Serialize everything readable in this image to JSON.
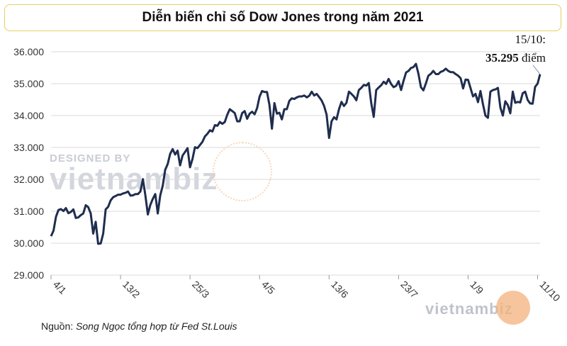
{
  "title": "Diễn biến chỉ số Dow Jones trong năm 2021",
  "source_label": "Nguồn:",
  "source_text": "Song Ngọc tổng hợp từ Fed St.Louis",
  "annotation": {
    "date": "15/10:",
    "value": "35.295",
    "unit": "điểm"
  },
  "watermark": {
    "top": "DESIGNED BY",
    "brand": "vietnambiz"
  },
  "colors": {
    "line": "#1f2d4e",
    "grid": "#d9d9d9",
    "title_border": "#e3cf63",
    "accent": "#f0a060"
  },
  "chart_data": {
    "type": "line",
    "title": "Diễn biến chỉ số Dow Jones trong năm 2021",
    "xlabel": "",
    "ylabel": "",
    "ylim": [
      29000,
      36000
    ],
    "yticks": [
      "29.000",
      "30.000",
      "31.000",
      "32.000",
      "33.000",
      "34.000",
      "35.000",
      "36.000"
    ],
    "yticks_values": [
      29000,
      30000,
      31000,
      32000,
      33000,
      34000,
      35000,
      36000
    ],
    "xticks": [
      "4/1",
      "13/2",
      "25/3",
      "4/5",
      "13/6",
      "23/7",
      "1/9",
      "11/10"
    ],
    "grid": true,
    "series": [
      {
        "values": [
          [
            0,
            30220
          ],
          [
            1,
            30390
          ],
          [
            2,
            30830
          ],
          [
            3,
            31040
          ],
          [
            4,
            31070
          ],
          [
            5,
            31010
          ],
          [
            6,
            31100
          ],
          [
            7,
            30940
          ],
          [
            8,
            30980
          ],
          [
            9,
            31060
          ],
          [
            10,
            30790
          ],
          [
            11,
            30810
          ],
          [
            12,
            30880
          ],
          [
            13,
            30930
          ],
          [
            14,
            31190
          ],
          [
            15,
            31130
          ],
          [
            16,
            30930
          ],
          [
            17,
            30300
          ],
          [
            18,
            30670
          ],
          [
            19,
            29980
          ],
          [
            20,
            29990
          ],
          [
            21,
            30300
          ],
          [
            22,
            31060
          ],
          [
            23,
            31140
          ],
          [
            24,
            31340
          ],
          [
            25,
            31440
          ],
          [
            26,
            31480
          ],
          [
            27,
            31520
          ],
          [
            28,
            31520
          ],
          [
            29,
            31560
          ],
          [
            30,
            31580
          ],
          [
            31,
            31620
          ],
          [
            32,
            31490
          ],
          [
            33,
            31500
          ],
          [
            34,
            31540
          ],
          [
            35,
            31540
          ],
          [
            36,
            31620
          ],
          [
            37,
            32010
          ],
          [
            38,
            31500
          ],
          [
            39,
            30900
          ],
          [
            40,
            31200
          ],
          [
            41,
            31390
          ],
          [
            42,
            31540
          ],
          [
            43,
            30930
          ],
          [
            44,
            31500
          ],
          [
            45,
            31800
          ],
          [
            46,
            32300
          ],
          [
            47,
            32480
          ],
          [
            48,
            32800
          ],
          [
            49,
            32950
          ],
          [
            50,
            32780
          ],
          [
            51,
            32900
          ],
          [
            52,
            32440
          ],
          [
            53,
            32750
          ],
          [
            54,
            32860
          ],
          [
            55,
            32980
          ],
          [
            56,
            32380
          ],
          [
            57,
            32640
          ],
          [
            58,
            33010
          ],
          [
            59,
            32980
          ],
          [
            60,
            33080
          ],
          [
            61,
            33180
          ],
          [
            62,
            33350
          ],
          [
            63,
            33430
          ],
          [
            64,
            33540
          ],
          [
            65,
            33500
          ],
          [
            66,
            33700
          ],
          [
            67,
            33680
          ],
          [
            68,
            33800
          ],
          [
            69,
            33740
          ],
          [
            70,
            33800
          ],
          [
            71,
            34030
          ],
          [
            72,
            34200
          ],
          [
            73,
            34140
          ],
          [
            74,
            34080
          ],
          [
            75,
            33820
          ],
          [
            76,
            33820
          ],
          [
            77,
            34080
          ],
          [
            78,
            34140
          ],
          [
            79,
            33900
          ],
          [
            80,
            34060
          ],
          [
            81,
            34120
          ],
          [
            82,
            34040
          ],
          [
            83,
            34230
          ],
          [
            84,
            34590
          ],
          [
            85,
            34770
          ],
          [
            86,
            34740
          ],
          [
            87,
            34740
          ],
          [
            88,
            34330
          ],
          [
            89,
            33590
          ],
          [
            90,
            34390
          ],
          [
            91,
            34060
          ],
          [
            92,
            34090
          ],
          [
            93,
            33880
          ],
          [
            94,
            34200
          ],
          [
            95,
            34200
          ],
          [
            96,
            34460
          ],
          [
            97,
            34540
          ],
          [
            98,
            34520
          ],
          [
            99,
            34570
          ],
          [
            100,
            34600
          ],
          [
            101,
            34600
          ],
          [
            102,
            34630
          ],
          [
            103,
            34570
          ],
          [
            104,
            34620
          ],
          [
            105,
            34750
          ],
          [
            106,
            34630
          ],
          [
            107,
            34680
          ],
          [
            108,
            34580
          ],
          [
            109,
            34470
          ],
          [
            110,
            34300
          ],
          [
            111,
            34030
          ],
          [
            112,
            33300
          ],
          [
            113,
            33820
          ],
          [
            114,
            33950
          ],
          [
            115,
            33880
          ],
          [
            116,
            34200
          ],
          [
            117,
            34430
          ],
          [
            118,
            34300
          ],
          [
            119,
            34400
          ],
          [
            120,
            34750
          ],
          [
            121,
            34680
          ],
          [
            122,
            34600
          ],
          [
            123,
            34480
          ],
          [
            124,
            34800
          ],
          [
            125,
            34870
          ],
          [
            126,
            34960
          ],
          [
            127,
            34940
          ],
          [
            128,
            35020
          ],
          [
            129,
            34390
          ],
          [
            130,
            33960
          ],
          [
            131,
            34800
          ],
          [
            132,
            34880
          ],
          [
            133,
            34950
          ],
          [
            134,
            35060
          ],
          [
            135,
            34990
          ],
          [
            136,
            35150
          ],
          [
            137,
            34990
          ],
          [
            138,
            34890
          ],
          [
            139,
            34930
          ],
          [
            140,
            35080
          ],
          [
            141,
            34800
          ],
          [
            142,
            35090
          ],
          [
            143,
            35350
          ],
          [
            144,
            35400
          ],
          [
            145,
            35490
          ],
          [
            146,
            35520
          ],
          [
            147,
            35620
          ],
          [
            148,
            35310
          ],
          [
            149,
            34890
          ],
          [
            150,
            34790
          ],
          [
            151,
            35010
          ],
          [
            152,
            35250
          ],
          [
            153,
            35310
          ],
          [
            154,
            35400
          ],
          [
            155,
            35300
          ],
          [
            156,
            35300
          ],
          [
            157,
            35370
          ],
          [
            158,
            35400
          ],
          [
            159,
            35470
          ],
          [
            160,
            35400
          ],
          [
            161,
            35360
          ],
          [
            162,
            35360
          ],
          [
            163,
            35300
          ],
          [
            164,
            35250
          ],
          [
            165,
            35170
          ],
          [
            166,
            34850
          ],
          [
            167,
            35130
          ],
          [
            168,
            35120
          ],
          [
            169,
            34860
          ],
          [
            170,
            34600
          ],
          [
            171,
            34680
          ],
          [
            172,
            34420
          ],
          [
            173,
            34770
          ],
          [
            174,
            34360
          ],
          [
            175,
            34000
          ],
          [
            176,
            33930
          ],
          [
            177,
            34750
          ],
          [
            178,
            34800
          ],
          [
            179,
            34820
          ],
          [
            180,
            34870
          ],
          [
            181,
            34250
          ],
          [
            182,
            34000
          ],
          [
            183,
            34450
          ],
          [
            184,
            34330
          ],
          [
            185,
            34070
          ],
          [
            186,
            34750
          ],
          [
            187,
            34400
          ],
          [
            188,
            34430
          ],
          [
            189,
            34410
          ],
          [
            190,
            34700
          ],
          [
            191,
            34750
          ],
          [
            192,
            34490
          ],
          [
            193,
            34380
          ],
          [
            194,
            34370
          ],
          [
            195,
            34900
          ],
          [
            196,
            35000
          ],
          [
            197,
            35295
          ]
        ]
      }
    ]
  }
}
